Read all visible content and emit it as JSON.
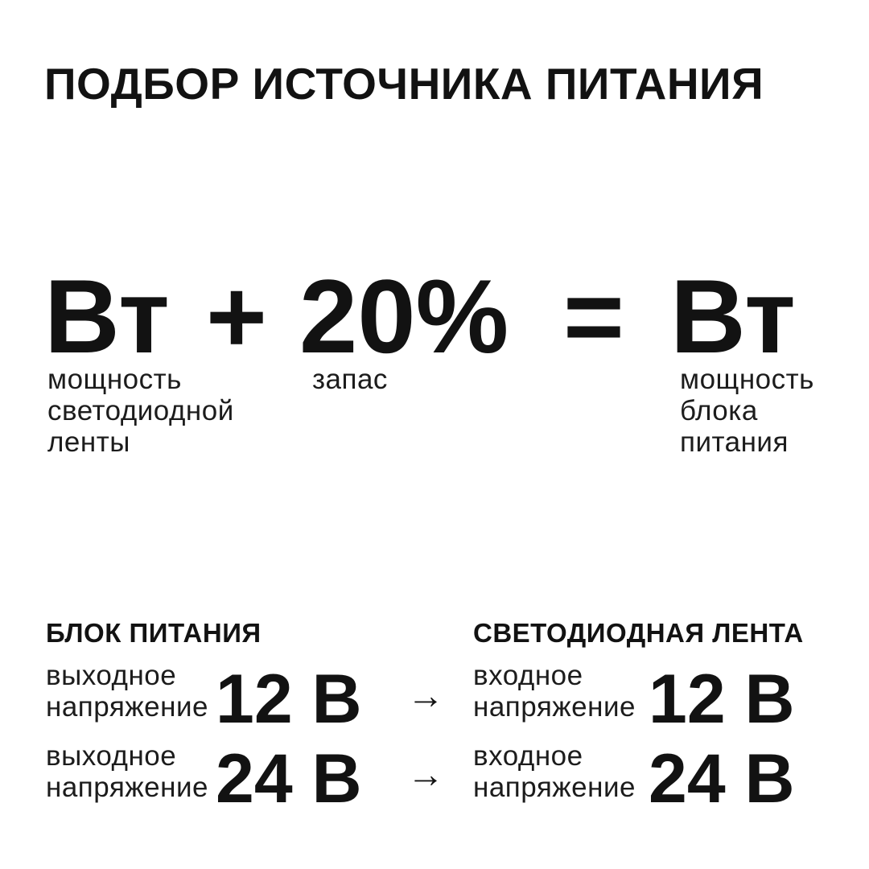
{
  "colors": {
    "background": "#ffffff",
    "text": "#121212"
  },
  "title": "ПОДБОР ИСТОЧНИКА ПИТАНИЯ",
  "formula": {
    "strip_power_value": "Вт",
    "strip_power_label": "мощность\nсветодиодной\nленты",
    "plus_sign": "+",
    "reserve_value": "20%",
    "reserve_label": "запас",
    "equals_sign": "=",
    "psu_power_value": "Вт",
    "psu_power_label": "мощность\nблока\nпитания"
  },
  "comparison": {
    "arrow": "→",
    "psu": {
      "header": "БЛОК ПИТАНИЯ",
      "rows": [
        {
          "label": "выходное\nнапряжение",
          "value": "12 В"
        },
        {
          "label": "выходное\nнапряжение",
          "value": "24 В"
        }
      ]
    },
    "strip": {
      "header": "СВЕТОДИОДНАЯ ЛЕНТА",
      "rows": [
        {
          "label": "входное\nнапряжение",
          "value": "12 В"
        },
        {
          "label": "входное\nнапряжение",
          "value": "24 В"
        }
      ]
    }
  }
}
